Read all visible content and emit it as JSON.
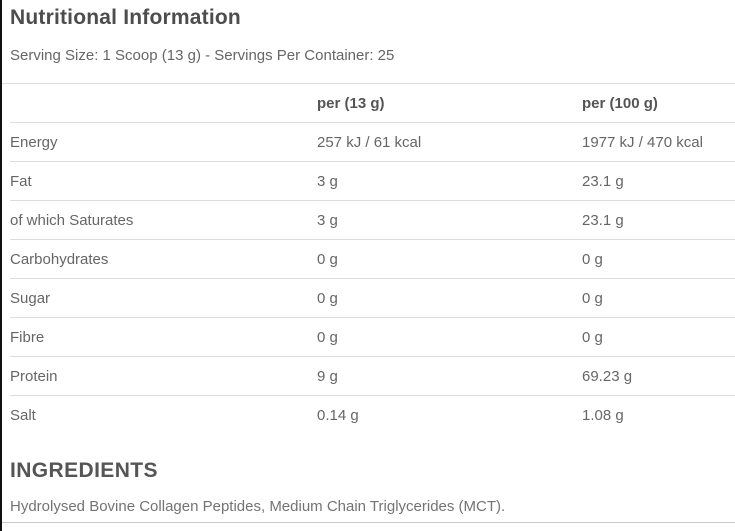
{
  "header": {
    "title": "Nutritional Information",
    "serving_info": "Serving Size: 1 Scoop (13 g) - Servings Per Container: 25"
  },
  "table": {
    "columns": [
      "",
      "per (13 g)",
      "per (100 g)"
    ],
    "rows": [
      {
        "label": "Energy",
        "per_13g": "257 kJ / 61 kcal",
        "per_100g": "1977 kJ / 470 kcal"
      },
      {
        "label": "Fat",
        "per_13g": "3 g",
        "per_100g": "23.1 g"
      },
      {
        "label": "of which Saturates",
        "per_13g": "3 g",
        "per_100g": "23.1 g"
      },
      {
        "label": "Carbohydrates",
        "per_13g": "0 g",
        "per_100g": "0 g"
      },
      {
        "label": "Sugar",
        "per_13g": "0 g",
        "per_100g": "0 g"
      },
      {
        "label": "Fibre",
        "per_13g": "0 g",
        "per_100g": "0 g"
      },
      {
        "label": "Protein",
        "per_13g": "9 g",
        "per_100g": "69.23 g"
      },
      {
        "label": "Salt",
        "per_13g": "0.14 g",
        "per_100g": "1.08 g"
      }
    ]
  },
  "ingredients": {
    "heading": "INGREDIENTS",
    "text": "Hydrolysed Bovine Collagen Peptides, Medium Chain Triglycerides (MCT)."
  },
  "colors": {
    "title_text": "#4d4d4d",
    "body_text": "#666666",
    "header_text": "#555555",
    "ingredients_text": "#737373",
    "divider": "#dddddd",
    "left_border": "#111111",
    "background": "#ffffff"
  }
}
